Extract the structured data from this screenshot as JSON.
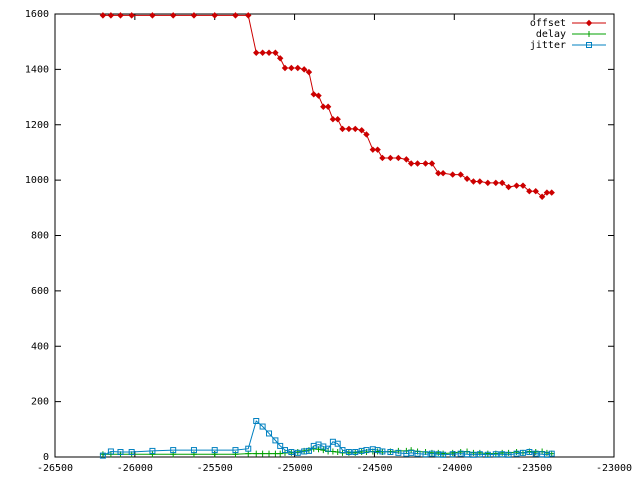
{
  "chart_data": {
    "type": "line",
    "x": [
      -26200,
      -26150,
      -26090,
      -26020,
      -25890,
      -25760,
      -25630,
      -25500,
      -25370,
      -25290,
      -25240,
      -25200,
      -25160,
      -25120,
      -25090,
      -25060,
      -25020,
      -24980,
      -24940,
      -24910,
      -24880,
      -24850,
      -24820,
      -24790,
      -24760,
      -24730,
      -24700,
      -24660,
      -24620,
      -24580,
      -24550,
      -24510,
      -24480,
      -24450,
      -24400,
      -24350,
      -24300,
      -24270,
      -24230,
      -24180,
      -24140,
      -24100,
      -24070,
      -24010,
      -23960,
      -23920,
      -23880,
      -23840,
      -23790,
      -23740,
      -23700,
      -23660,
      -23610,
      -23570,
      -23530,
      -23490,
      -23450,
      -23420,
      -23390
    ],
    "series": [
      {
        "name": "offset",
        "color": "#cc0000",
        "marker": "diamond",
        "values": [
          1595,
          1595,
          1595,
          1595,
          1595,
          1595,
          1595,
          1595,
          1595,
          1595,
          1460,
          1460,
          1460,
          1460,
          1440,
          1405,
          1405,
          1405,
          1400,
          1390,
          1310,
          1305,
          1265,
          1265,
          1220,
          1220,
          1185,
          1185,
          1185,
          1180,
          1165,
          1110,
          1110,
          1080,
          1080,
          1080,
          1075,
          1060,
          1060,
          1060,
          1060,
          1025,
          1025,
          1020,
          1020,
          1005,
          995,
          995,
          990,
          990,
          990,
          975,
          980,
          980,
          960,
          960,
          940,
          955,
          955
        ]
      },
      {
        "name": "delay",
        "color": "#00a000",
        "marker": "plus",
        "values": [
          10,
          10,
          10,
          10,
          10,
          10,
          10,
          10,
          10,
          12,
          12,
          12,
          12,
          12,
          12,
          15,
          15,
          18,
          22,
          25,
          30,
          28,
          25,
          20,
          20,
          18,
          15,
          15,
          15,
          18,
          18,
          20,
          20,
          18,
          20,
          22,
          22,
          25,
          20,
          18,
          15,
          15,
          12,
          15,
          18,
          20,
          15,
          15,
          12,
          12,
          15,
          15,
          18,
          15,
          20,
          18,
          20,
          15,
          12
        ]
      },
      {
        "name": "jitter",
        "color": "#0080c0",
        "marker": "square",
        "values": [
          5,
          20,
          18,
          18,
          22,
          25,
          25,
          25,
          25,
          30,
          130,
          110,
          85,
          60,
          40,
          25,
          18,
          15,
          20,
          22,
          40,
          45,
          38,
          30,
          55,
          48,
          25,
          18,
          18,
          22,
          25,
          28,
          25,
          20,
          18,
          15,
          12,
          15,
          12,
          10,
          12,
          10,
          8,
          10,
          12,
          10,
          8,
          10,
          8,
          10,
          10,
          8,
          12,
          15,
          18,
          12,
          10,
          8,
          12
        ]
      }
    ],
    "xlim": [
      -26500,
      -23000
    ],
    "xticks": [
      -26500,
      -26000,
      -25500,
      -25000,
      -24500,
      -24000,
      -23500,
      -23000
    ],
    "ylim": [
      0,
      1600
    ],
    "yticks": [
      0,
      200,
      400,
      600,
      800,
      1000,
      1200,
      1400,
      1600
    ],
    "legend": "top-right"
  }
}
